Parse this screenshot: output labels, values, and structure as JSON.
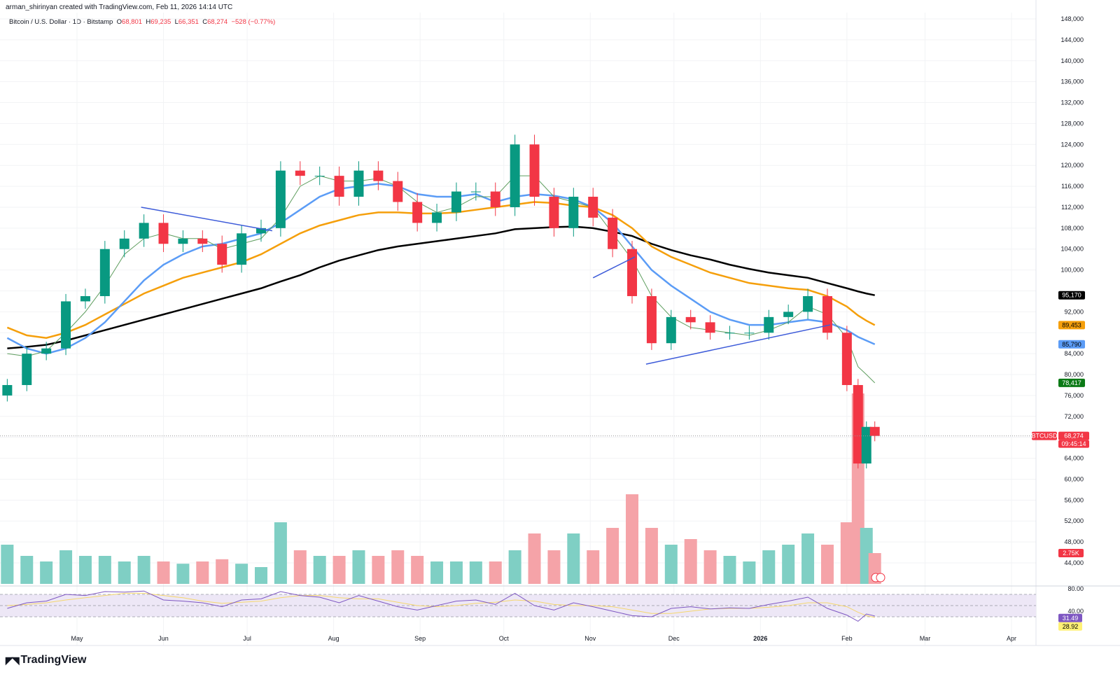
{
  "header": {
    "credit": "arman_shirinyan created with TradingView.com, Feb 11, 2026 14:14 UTC",
    "symbol": "Bitcoin / U.S. Dollar · 1D · Bitstamp",
    "o_label": "O",
    "open": "68,801",
    "h_label": "H",
    "high": "69,235",
    "l_label": "L",
    "low": "66,351",
    "c_label": "C",
    "close": "68,274",
    "change": "−528 (−0.77%)"
  },
  "badges": {
    "ma200": "95,170",
    "ma100": "89,453",
    "ma50": "85,790",
    "ma20": "78,417",
    "symbol_tag": "BTCUSD",
    "last_price": "68,274",
    "countdown": "09:45:14",
    "volume": "2.75K",
    "rsi": "31.49",
    "rsi_ma": "28.92"
  },
  "logo": {
    "text": "TradingView"
  },
  "colors": {
    "up": "#089981",
    "down": "#f23645",
    "vol_up": "#7fcfc4",
    "vol_down": "#f5a3a8",
    "ma200": "#000000",
    "ma100": "#f59f0b",
    "ma50": "#5b9cf6",
    "ma20": "#5f9e5f",
    "trendline": "#3d5bd9",
    "rsi": "#7e57c2",
    "rsi_ma": "#f5d76e",
    "rsi_band": "#ede7f6"
  },
  "chart_data": {
    "type": "candlestick",
    "title": "Bitcoin / U.S. Dollar · 1D · Bitstamp",
    "ylim": [
      44000,
      148000
    ],
    "y_tick_step": 4000,
    "x_ticks": [
      {
        "date": "2025-05-01",
        "label": "May"
      },
      {
        "date": "2025-06-01",
        "label": "Jun"
      },
      {
        "date": "2025-07-01",
        "label": "Jul"
      },
      {
        "date": "2025-08-01",
        "label": "Aug"
      },
      {
        "date": "2025-09-01",
        "label": "Sep"
      },
      {
        "date": "2025-10-01",
        "label": "Oct"
      },
      {
        "date": "2025-11-01",
        "label": "Nov"
      },
      {
        "date": "2025-12-01",
        "label": "Dec"
      },
      {
        "date": "2026-01-01",
        "label": "2026"
      },
      {
        "date": "2026-02-01",
        "label": "Feb"
      },
      {
        "date": "2026-03-01",
        "label": "Mar"
      },
      {
        "date": "2026-04-01",
        "label": "Apr"
      }
    ],
    "dates": [
      "2025-04-06",
      "2025-04-13",
      "2025-04-20",
      "2025-04-27",
      "2025-05-04",
      "2025-05-11",
      "2025-05-18",
      "2025-05-25",
      "2025-06-01",
      "2025-06-08",
      "2025-06-15",
      "2025-06-22",
      "2025-06-29",
      "2025-07-06",
      "2025-07-13",
      "2025-07-20",
      "2025-07-27",
      "2025-08-03",
      "2025-08-10",
      "2025-08-17",
      "2025-08-24",
      "2025-08-31",
      "2025-09-07",
      "2025-09-14",
      "2025-09-21",
      "2025-09-28",
      "2025-10-05",
      "2025-10-12",
      "2025-10-19",
      "2025-10-26",
      "2025-11-02",
      "2025-11-09",
      "2025-11-16",
      "2025-11-23",
      "2025-11-30",
      "2025-12-07",
      "2025-12-14",
      "2025-12-21",
      "2025-12-28",
      "2026-01-04",
      "2026-01-11",
      "2026-01-18",
      "2026-01-25",
      "2026-02-01",
      "2026-02-05",
      "2026-02-08",
      "2026-02-11"
    ],
    "close": [
      78000,
      84000,
      85000,
      94000,
      95000,
      104000,
      106000,
      109000,
      105000,
      106000,
      105000,
      101000,
      107000,
      108000,
      119000,
      118000,
      118000,
      114000,
      119000,
      117000,
      113000,
      109000,
      111000,
      115000,
      115000,
      112000,
      124000,
      114000,
      108000,
      114000,
      110000,
      104000,
      95000,
      86000,
      91000,
      90000,
      88000,
      88000,
      88000,
      91000,
      92000,
      95000,
      88000,
      78000,
      63000,
      70000,
      68274
    ],
    "moving_averages": [
      {
        "key": "ma200",
        "values": [
          85000,
          85300,
          85700,
          86500,
          87500,
          88500,
          89500,
          90500,
          91500,
          92500,
          93500,
          94500,
          95500,
          96500,
          97800,
          99000,
          100500,
          101800,
          102800,
          103800,
          104500,
          105000,
          105500,
          106000,
          106500,
          107000,
          107800,
          108000,
          108200,
          108300,
          108000,
          107300,
          106500,
          105000,
          103800,
          102800,
          102000,
          101000,
          100200,
          99500,
          99000,
          98500,
          97500,
          96500,
          95900,
          95500,
          95170
        ]
      },
      {
        "key": "ma100",
        "values": [
          89000,
          87500,
          87000,
          88000,
          89500,
          91500,
          93500,
          95500,
          97000,
          98500,
          99500,
          100500,
          101500,
          103000,
          105000,
          107000,
          108500,
          109500,
          110500,
          111000,
          111000,
          110800,
          110800,
          111000,
          111500,
          112000,
          112500,
          113000,
          112800,
          112300,
          112000,
          110500,
          108000,
          104500,
          102500,
          101000,
          99500,
          98500,
          97500,
          97000,
          96500,
          96200,
          95000,
          93000,
          91300,
          90300,
          89453
        ]
      },
      {
        "key": "ma50",
        "values": [
          87000,
          85000,
          84000,
          85000,
          87000,
          90000,
          94000,
          98000,
          101000,
          103000,
          104500,
          105000,
          106000,
          107000,
          109000,
          111500,
          114000,
          115500,
          116000,
          116500,
          116000,
          114500,
          114000,
          114000,
          114500,
          113000,
          114000,
          114500,
          114200,
          113500,
          112000,
          109000,
          104500,
          100000,
          97000,
          94500,
          92000,
          90500,
          89500,
          89500,
          90000,
          90500,
          90000,
          88500,
          87200,
          86500,
          85790
        ]
      },
      {
        "key": "ma20",
        "values": [
          84000,
          83500,
          84500,
          88000,
          92000,
          97000,
          103000,
          106000,
          107000,
          106000,
          106000,
          104000,
          105000,
          106000,
          110000,
          116000,
          118000,
          117000,
          117000,
          117500,
          116000,
          113000,
          111000,
          112000,
          114000,
          114000,
          118000,
          118000,
          114000,
          113000,
          112000,
          107000,
          102000,
          95000,
          91000,
          89000,
          88500,
          88000,
          87500,
          88500,
          90000,
          93000,
          91500,
          87000,
          81500,
          80000,
          78417
        ]
      }
    ],
    "trendlines": [
      {
        "from": [
          "2025-05-24",
          112000
        ],
        "to": [
          "2025-07-10",
          107500
        ]
      },
      {
        "from": [
          "2025-11-02",
          98500
        ],
        "to": [
          "2025-11-17",
          102500
        ]
      },
      {
        "from": [
          "2025-11-21",
          82000
        ],
        "to": [
          "2026-01-26",
          89500
        ]
      }
    ],
    "volume_k": [
      3.5,
      2.5,
      2.0,
      3.0,
      2.5,
      2.5,
      2.0,
      2.5,
      2.0,
      1.8,
      2.0,
      2.2,
      1.8,
      1.5,
      5.5,
      3.0,
      2.5,
      2.5,
      3.0,
      2.5,
      3.0,
      2.5,
      2.0,
      2.0,
      2.0,
      2.0,
      3.0,
      4.5,
      3.0,
      4.5,
      3.0,
      5.0,
      8.0,
      5.0,
      3.5,
      4.0,
      3.0,
      2.5,
      2.0,
      3.0,
      3.5,
      4.5,
      3.5,
      5.5,
      17.0,
      5.0,
      2.75
    ],
    "rsi": {
      "ylim_labels": [
        "80.00",
        "40.00"
      ],
      "levels": [
        70,
        50,
        30
      ],
      "values": [
        45,
        55,
        58,
        70,
        68,
        75,
        74,
        76,
        60,
        58,
        55,
        48,
        60,
        62,
        75,
        68,
        65,
        55,
        68,
        58,
        48,
        42,
        50,
        58,
        60,
        52,
        72,
        50,
        42,
        55,
        48,
        40,
        32,
        30,
        45,
        48,
        44,
        46,
        45,
        52,
        58,
        65,
        45,
        33,
        22,
        35,
        31.49
      ],
      "ma": [
        50,
        52,
        55,
        60,
        64,
        68,
        72,
        72,
        68,
        64,
        58,
        54,
        56,
        58,
        64,
        68,
        68,
        64,
        62,
        62,
        56,
        50,
        48,
        50,
        54,
        56,
        60,
        58,
        52,
        50,
        50,
        48,
        42,
        36,
        36,
        40,
        44,
        45,
        45,
        47,
        50,
        55,
        55,
        48,
        38,
        32,
        28.92
      ]
    }
  }
}
